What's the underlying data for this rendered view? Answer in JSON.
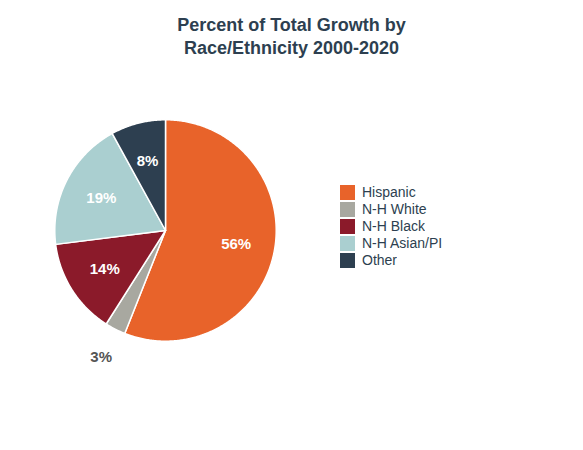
{
  "chart_data": {
    "type": "pie",
    "title": "Percent of Total Growth by\nRace/Ethnicity 2000-2020",
    "categories": [
      "Hispanic",
      "N-H White",
      "N-H Black",
      "N-H Asian/PI",
      "Other"
    ],
    "values": [
      56,
      3,
      14,
      19,
      8
    ],
    "value_labels": [
      "56%",
      "3%",
      "14%",
      "19%",
      "8%"
    ],
    "colors": [
      "#e8632a",
      "#a8a8a0",
      "#8b1a2a",
      "#aacfd0",
      "#2d3f50"
    ],
    "data_labels": true,
    "legend": "right"
  }
}
